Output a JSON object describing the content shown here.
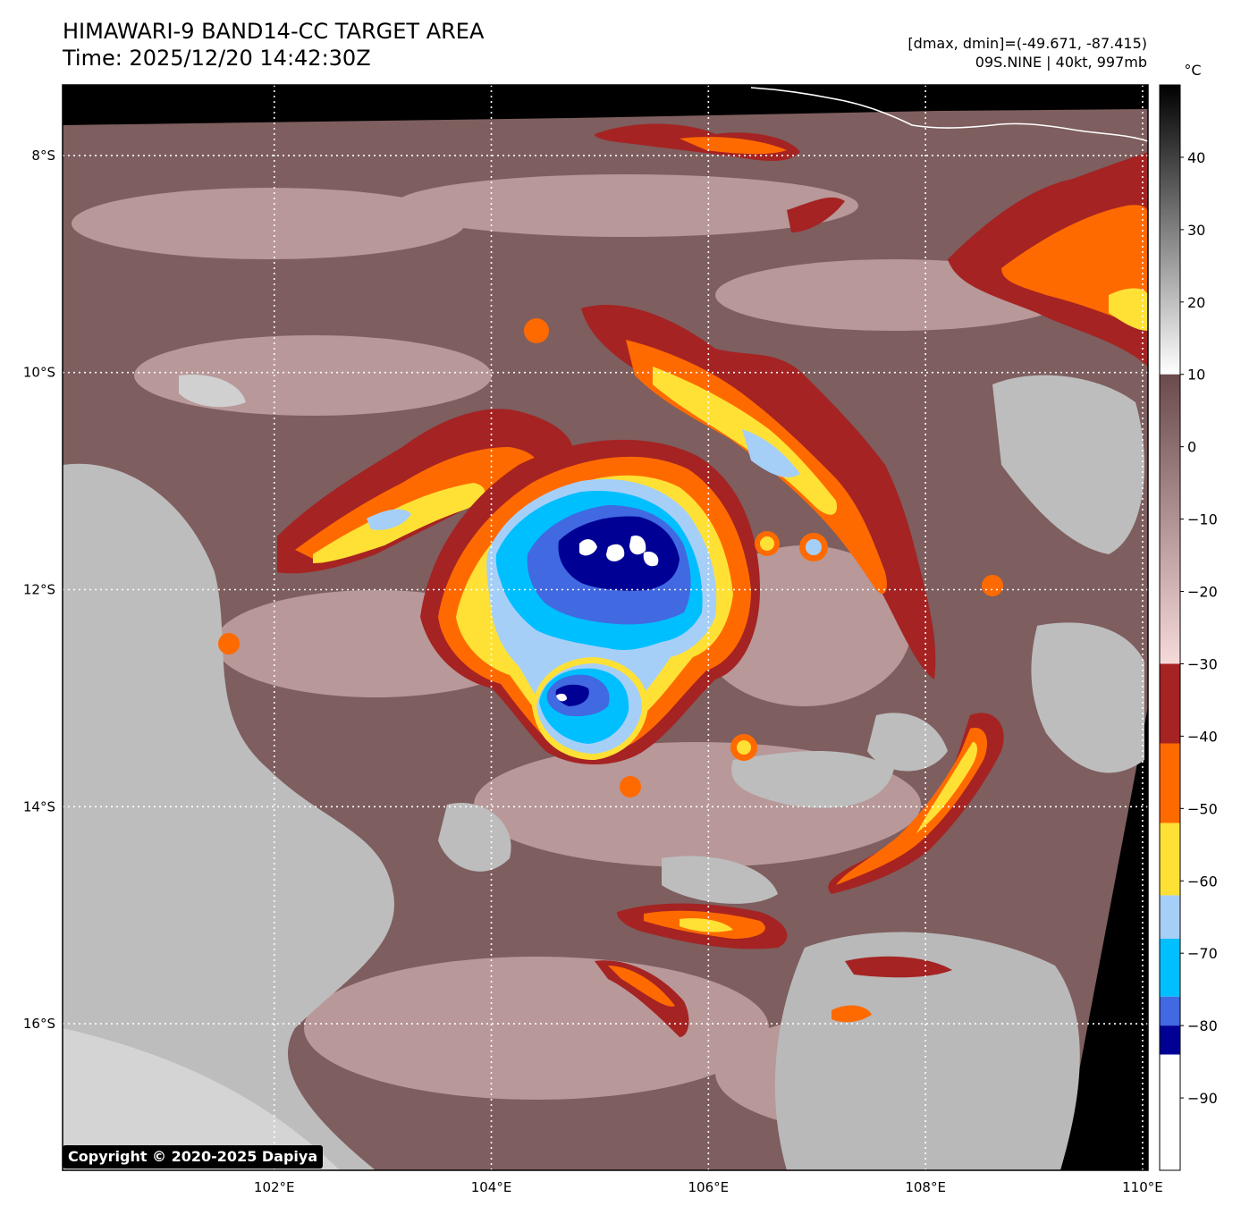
{
  "header": {
    "title_line1": "HIMAWARI-9 BAND14-CC TARGET AREA",
    "title_line2": "Time: 2025/12/20 14:42:30Z",
    "info_line1": "[dmax, dmin]=(-49.671, -87.415)",
    "info_line2": "09S.NINE | 40kt, 997mb"
  },
  "map": {
    "lat_labels": [
      "8°S",
      "10°S",
      "12°S",
      "14°S",
      "16°S"
    ],
    "lon_labels": [
      "102°E",
      "104°E",
      "106°E",
      "108°E",
      "110°E"
    ],
    "lat_values": [
      -8,
      -10,
      -12,
      -14,
      -16
    ],
    "lon_values": [
      102,
      104,
      106,
      108,
      110
    ],
    "extent": {
      "lon_min": 100.05,
      "lon_max": 110.05,
      "lat_max": -7.35,
      "lat_min": -17.35
    }
  },
  "colorbar": {
    "unit": "°C",
    "tick_labels": [
      "40",
      "30",
      "20",
      "10",
      "0",
      "−10",
      "−20",
      "−30",
      "−40",
      "−50",
      "−60",
      "−70",
      "−80",
      "−90"
    ],
    "tick_values": [
      40,
      30,
      20,
      10,
      0,
      -10,
      -20,
      -30,
      -40,
      -50,
      -60,
      -70,
      -80,
      -90
    ],
    "range": [
      50,
      -100
    ],
    "color_stops": [
      {
        "from": 50,
        "to": 10,
        "kind": "gray-ramp",
        "top": "#000000",
        "bottom": "#ffffff"
      },
      {
        "from": 10,
        "to": -30,
        "kind": "brown-ramp",
        "top": "#6a4a4a",
        "bottom": "#f6dada"
      },
      {
        "from": -30,
        "to": -41,
        "color": "#a52323"
      },
      {
        "from": -41,
        "to": -52,
        "color": "#ff6a00"
      },
      {
        "from": -52,
        "to": -62,
        "color": "#ffe135"
      },
      {
        "from": -62,
        "to": -68,
        "color": "#a6cff8"
      },
      {
        "from": -68,
        "to": -76,
        "color": "#00bfff"
      },
      {
        "from": -76,
        "to": -80,
        "color": "#4169e1"
      },
      {
        "from": -80,
        "to": -84,
        "color": "#000095"
      },
      {
        "from": -84,
        "to": -100,
        "color": "#ffffff"
      }
    ]
  },
  "copyright": "Copyright © 2020-2025 Dapiya",
  "colors": {
    "warm_cloud_brown": "#7a5a5a",
    "land_gray": "#c8c8c8",
    "red_band": "#a52323",
    "orange_band": "#ff6a00",
    "yellow_band": "#ffe135",
    "lightblue_band": "#a6cff8",
    "cyan_band": "#00bfff",
    "blue_band": "#4169e1",
    "navy_band": "#000095",
    "no_data": "#000000"
  }
}
